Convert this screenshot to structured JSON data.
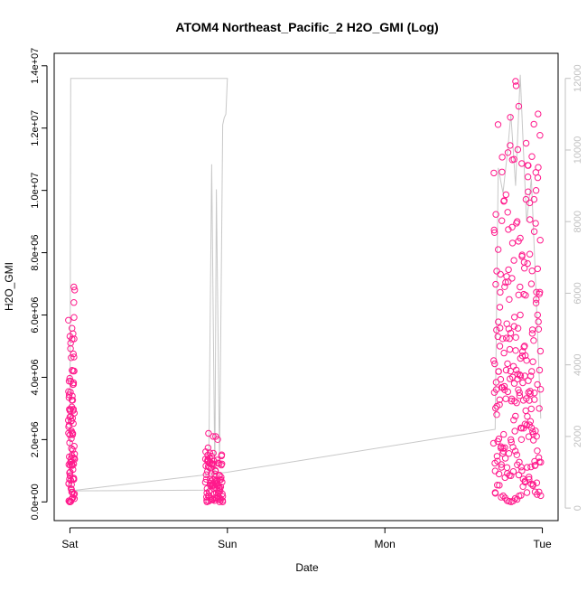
{
  "chart_data": {
    "type": "scatter",
    "title": "ATOM4 Northeast_Pacific_2 H2O_GMI (Log)",
    "xlabel": "Date",
    "ylabel": "H2O_GMI",
    "x_ticks": [
      "Sat",
      "Sun",
      "Mon",
      "Tue"
    ],
    "x_tick_days": [
      0,
      1,
      2,
      3
    ],
    "xlim_days": [
      -0.1,
      3.1
    ],
    "ylim": [
      -600000,
      14400000
    ],
    "y_ticks": [
      0,
      2000000,
      4000000,
      6000000,
      8000000,
      10000000,
      12000000,
      14000000
    ],
    "y_tick_labels": [
      "0.0e+00",
      "2.0e+06",
      "4.0e+06",
      "6.0e+06",
      "8.0e+06",
      "1.0e+07",
      "1.2e+07",
      "1.4e+07"
    ],
    "y2lim": [
      -350,
      12700
    ],
    "y2_ticks": [
      0,
      2000,
      4000,
      6000,
      8000,
      10000,
      12000
    ],
    "y2_tick_labels": [
      "0",
      "2000",
      "4000",
      "6000",
      "8000",
      "10000",
      "12000"
    ],
    "grid": false,
    "colors": {
      "points": "#ff1a8c",
      "line": "#c8c8c8",
      "axis": "#000000",
      "axis2": "#c0c0c0"
    },
    "series": [
      {
        "role": "scatter",
        "segments": [
          {
            "start_day": -0.01,
            "end_day": 0.03,
            "peak": 6900000
          },
          {
            "start_day": 0.86,
            "end_day": 0.97,
            "peak": 2200000
          },
          {
            "start_day": 2.69,
            "end_day": 2.99,
            "peak": 13500000
          }
        ],
        "points": [
          [
            0.0,
            0
          ],
          [
            0.01,
            400000
          ],
          [
            0.01,
            1200000
          ],
          [
            0.01,
            2600000
          ],
          [
            0.015,
            3400000
          ],
          [
            0.02,
            4200000
          ],
          [
            0.02,
            5400000
          ],
          [
            0.025,
            6400000
          ],
          [
            0.025,
            6900000
          ],
          [
            0.03,
            6800000
          ],
          [
            0.87,
            0
          ],
          [
            0.875,
            1500000
          ],
          [
            0.88,
            2200000
          ],
          [
            0.89,
            600000
          ],
          [
            0.9,
            1200000
          ],
          [
            0.91,
            2100000
          ],
          [
            0.92,
            900000
          ],
          [
            0.93,
            300000
          ],
          [
            0.95,
            0
          ],
          [
            0.97,
            0
          ],
          [
            2.7,
            300000
          ],
          [
            2.71,
            2800000
          ],
          [
            2.72,
            8100000
          ],
          [
            2.73,
            5000000
          ],
          [
            2.74,
            1200000
          ],
          [
            2.76,
            3600000
          ],
          [
            2.78,
            9300000
          ],
          [
            2.79,
            6500000
          ],
          [
            2.8,
            2000000
          ],
          [
            2.82,
            11000000
          ],
          [
            2.83,
            13500000
          ],
          [
            2.84,
            9000000
          ],
          [
            2.85,
            12700000
          ],
          [
            2.86,
            6000000
          ],
          [
            2.87,
            1000000
          ],
          [
            2.89,
            2500000
          ],
          [
            2.91,
            10800000
          ],
          [
            2.92,
            9600000
          ],
          [
            2.93,
            7000000
          ],
          [
            2.94,
            4500000
          ],
          [
            2.95,
            3500000
          ],
          [
            2.96,
            10000000
          ],
          [
            2.97,
            6000000
          ],
          [
            2.98,
            3000000
          ],
          [
            2.99,
            200000
          ]
        ]
      },
      {
        "role": "line_right_axis",
        "points": [
          [
            0.0,
            480
          ],
          [
            0.005,
            12000
          ],
          [
            0.5,
            12000
          ],
          [
            1.0,
            12000
          ],
          [
            0.99,
            11000
          ],
          [
            0.98,
            10900
          ],
          [
            0.97,
            10700
          ],
          [
            0.95,
            1200
          ],
          [
            0.93,
            8900
          ],
          [
            0.92,
            900
          ],
          [
            0.9,
            9600
          ],
          [
            0.88,
            500
          ],
          [
            0.0,
            480
          ],
          [
            1.0,
            1000
          ],
          [
            2.7,
            2200
          ],
          [
            2.72,
            9500
          ],
          [
            2.75,
            8800
          ],
          [
            2.78,
            10000
          ],
          [
            2.8,
            11000
          ],
          [
            2.83,
            9000
          ],
          [
            2.86,
            12100
          ],
          [
            2.88,
            10000
          ],
          [
            2.9,
            8000
          ],
          [
            2.93,
            9200
          ],
          [
            2.96,
            6000
          ],
          [
            2.99,
            2500
          ]
        ]
      }
    ]
  }
}
